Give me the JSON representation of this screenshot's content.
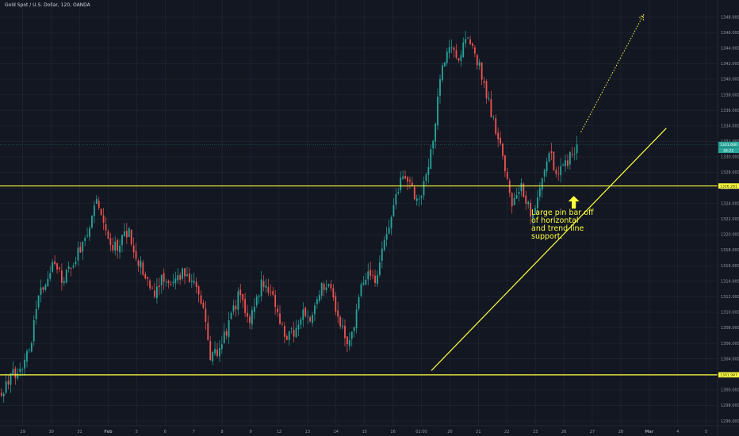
{
  "chart": {
    "title": "Gold Spot / U.S. Dollar, 120, OANDA",
    "annotation": "Large pin bar off of horizontal and trend line support."
  },
  "colors": {
    "background": "#131722",
    "grid": "#242836",
    "up": "#26a69a",
    "down": "#ef5350",
    "drawing": "#ffff3d",
    "axis_text": "#9598a1",
    "current_price_bg": "#26a69a"
  },
  "chart_data": {
    "type": "candlestick",
    "title": "Gold Spot / U.S. Dollar, 120, OANDA",
    "y_axis": {
      "position": "right",
      "range": [
        1295.4,
        1350.2
      ],
      "ticks": [
        1296,
        1298,
        1300,
        1302,
        1304,
        1306,
        1308,
        1310,
        1312,
        1314,
        1316,
        1318,
        1320,
        1322,
        1324,
        1326,
        1328,
        1330,
        1332,
        1334,
        1336,
        1338,
        1340,
        1342,
        1344,
        1346,
        1348
      ],
      "tick_labels": [
        "1296.000",
        "1298.000",
        "1300.000",
        "1302.000",
        "1304.000",
        "1306.000",
        "1308.000",
        "1310.000",
        "1312.000",
        "1314.000",
        "1316.000",
        "1318.000",
        "1320.000",
        "1322.000",
        "1324.000",
        "1326.000",
        "1328.000",
        "1330.000",
        "1332.000",
        "1334.000",
        "1336.000",
        "1338.000",
        "1340.000",
        "1342.000",
        "1344.000",
        "1346.000",
        "1348.000"
      ]
    },
    "x_axis": {
      "position": "bottom",
      "labels": [
        "29",
        "30",
        "31",
        "Feb",
        "5",
        "6",
        "7",
        "8",
        "9",
        "12",
        "13",
        "14",
        "15",
        "16",
        "02:00",
        "20",
        "21",
        "22",
        "23",
        "26",
        "27",
        "28",
        "Mar",
        "4",
        "5"
      ],
      "label_day_index": [
        0,
        1,
        2,
        3,
        4,
        5,
        6,
        7,
        8,
        9,
        10,
        11,
        12,
        13,
        14,
        15,
        16,
        17,
        18,
        19,
        20,
        21,
        22,
        23,
        24
      ],
      "bold_labels": [
        "Feb",
        "Mar"
      ]
    },
    "day_span": [
      -0.8,
      24.4
    ],
    "candle_anchors": [
      [
        -0.75,
        1299.6
      ],
      [
        -0.45,
        1301.6
      ],
      [
        0.0,
        1303.2
      ],
      [
        0.3,
        1306.5
      ],
      [
        0.6,
        1312.4
      ],
      [
        1.1,
        1316.7
      ],
      [
        1.4,
        1314.0
      ],
      [
        1.8,
        1316.8
      ],
      [
        2.3,
        1320.0
      ],
      [
        2.6,
        1324.8
      ],
      [
        2.9,
        1320.5
      ],
      [
        3.2,
        1318.3
      ],
      [
        3.4,
        1318.9
      ],
      [
        3.7,
        1320.4
      ],
      [
        4.0,
        1317.2
      ],
      [
        4.3,
        1314.5
      ],
      [
        4.6,
        1312.0
      ],
      [
        4.9,
        1314.6
      ],
      [
        5.2,
        1314.0
      ],
      [
        5.6,
        1315.2
      ],
      [
        6.0,
        1314.4
      ],
      [
        6.3,
        1311.5
      ],
      [
        6.6,
        1304.1
      ],
      [
        6.9,
        1305.0
      ],
      [
        7.3,
        1309.2
      ],
      [
        7.6,
        1312.3
      ],
      [
        8.0,
        1309.1
      ],
      [
        8.4,
        1314.2
      ],
      [
        8.9,
        1310.7
      ],
      [
        9.2,
        1306.4
      ],
      [
        9.5,
        1307.4
      ],
      [
        9.8,
        1310.0
      ],
      [
        10.1,
        1309.5
      ],
      [
        10.4,
        1313.0
      ],
      [
        10.8,
        1313.2
      ],
      [
        11.1,
        1308.8
      ],
      [
        11.4,
        1306.0
      ],
      [
        11.7,
        1309.6
      ],
      [
        12.0,
        1315.0
      ],
      [
        12.4,
        1314.0
      ],
      [
        12.7,
        1319.5
      ],
      [
        13.0,
        1323.4
      ],
      [
        13.3,
        1327.2
      ],
      [
        13.6,
        1326.5
      ],
      [
        13.9,
        1324.0
      ],
      [
        14.2,
        1327.8
      ],
      [
        14.5,
        1334.8
      ],
      [
        14.7,
        1342.0
      ],
      [
        15.0,
        1344.2
      ],
      [
        15.3,
        1342.4
      ],
      [
        15.6,
        1346.0
      ],
      [
        15.8,
        1344.5
      ],
      [
        16.1,
        1340.8
      ],
      [
        16.4,
        1336.5
      ],
      [
        16.7,
        1332.4
      ],
      [
        17.0,
        1327.4
      ],
      [
        17.2,
        1324.0
      ],
      [
        17.5,
        1326.3
      ],
      [
        17.7,
        1324.1
      ],
      [
        17.9,
        1322.6
      ],
      [
        18.2,
        1326.6
      ],
      [
        18.5,
        1330.5
      ],
      [
        18.8,
        1327.4
      ],
      [
        19.0,
        1329.0
      ],
      [
        19.3,
        1330.3
      ],
      [
        19.5,
        1331.6
      ]
    ],
    "last_price": 1331.6,
    "drawings": {
      "horizontal_levels": [
        1326.261,
        1301.947
      ],
      "level_labels": [
        "1326.261",
        "1301.947"
      ],
      "trend_line": {
        "start": [
          14.35,
          1302.5
        ],
        "end": [
          22.6,
          1333.7
        ]
      },
      "projection_arrow": {
        "start": [
          19.6,
          1333.2
        ],
        "end": [
          21.8,
          1348.3
        ],
        "style": "dotted"
      },
      "marker_arrow": {
        "at": [
          19.35,
          1326.0
        ],
        "direction": "up"
      }
    },
    "current_price_label": "1331.600",
    "countdown_label": "28:22",
    "grid": true,
    "legend": "none"
  }
}
